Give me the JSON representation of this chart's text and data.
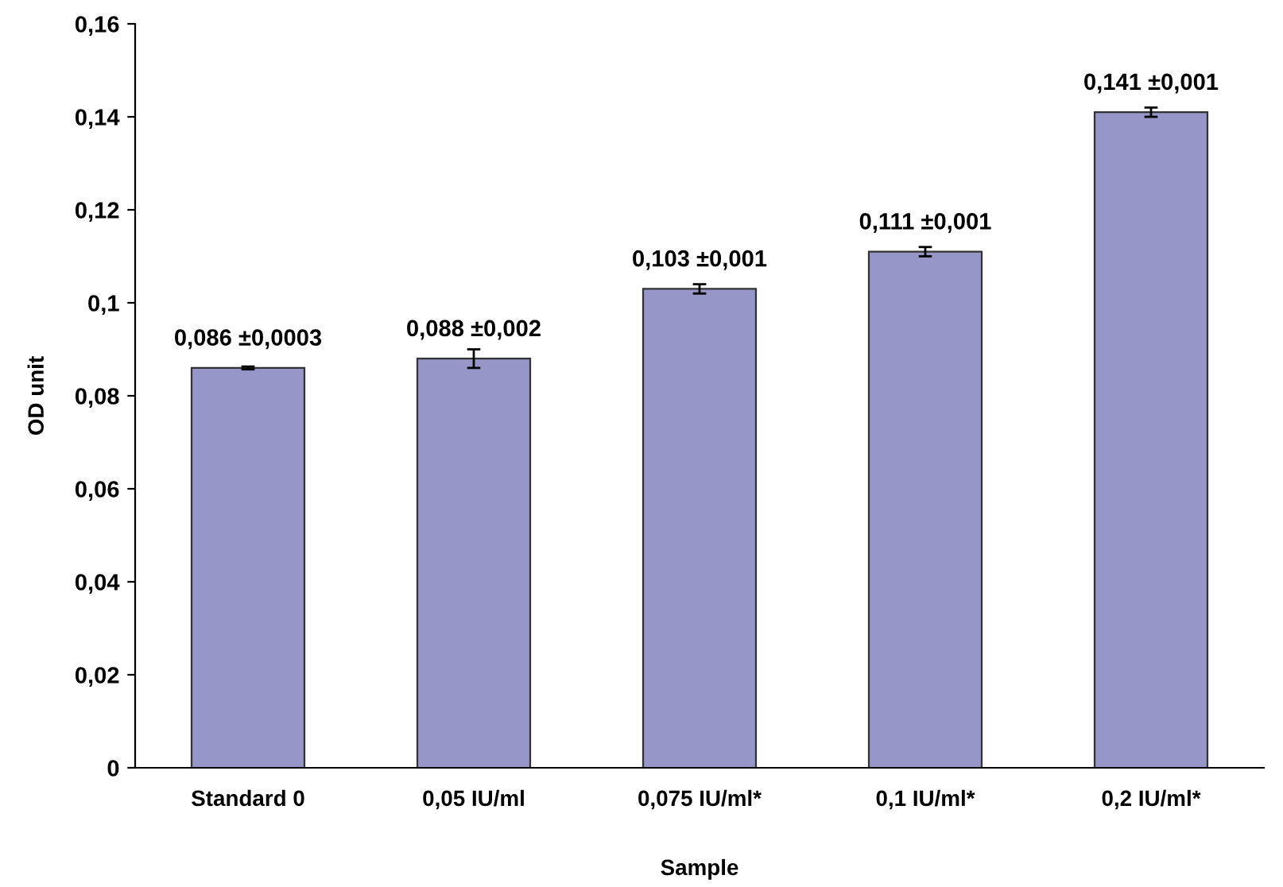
{
  "chart_data": {
    "type": "bar",
    "xlabel": "Sample",
    "ylabel": "OD unit",
    "categories": [
      "Standard 0",
      "0,05 IU/ml",
      "0,075 IU/ml*",
      "0,1 IU/ml*",
      "0,2 IU/ml*"
    ],
    "values": [
      0.086,
      0.088,
      0.103,
      0.111,
      0.141
    ],
    "errors": [
      0.0003,
      0.002,
      0.001,
      0.001,
      0.001
    ],
    "value_labels": [
      "0,086 ±0,0003",
      "0,088 ±0,002",
      "0,103 ±0,001",
      "0,111 ±0,001",
      "0,141 ±0,001"
    ],
    "color": "#9696c8",
    "ylim": [
      0,
      0.16
    ],
    "yticks": [
      0,
      {
        "value": 0.02,
        "label": "0,02"
      },
      {
        "value": 0.04,
        "label": "0,04"
      },
      {
        "value": 0.06,
        "label": "0,06"
      },
      {
        "value": 0.08,
        "label": "0,08"
      },
      {
        "value": 0.1,
        "label": "0,1"
      },
      {
        "value": 0.12,
        "label": "0,12"
      },
      {
        "value": 0.14,
        "label": "0,14"
      },
      {
        "value": 0.16,
        "label": "0,16"
      }
    ],
    "grid": false,
    "legend": false
  }
}
